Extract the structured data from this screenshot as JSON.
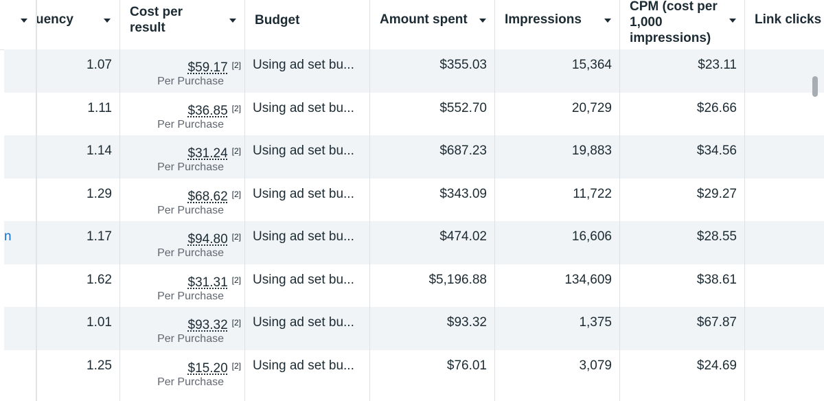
{
  "columns": {
    "frequency": "uency",
    "cost_per_result_line1": "Cost per",
    "cost_per_result_line2": "result",
    "budget": "Budget",
    "amount_spent": "Amount spent",
    "impressions": "Impressions",
    "cpm_line1": "CPM (cost per",
    "cpm_line2": "1,000",
    "cpm_line3": "impressions)",
    "link_clicks": "Link clicks"
  },
  "rows": [
    {
      "name_fragment": "",
      "frequency": "1.07",
      "cost": "$59.17",
      "footnote": "[2]",
      "result_type": "Per Purchase",
      "budget": "Using ad set bu...",
      "amount_spent": "$355.03",
      "impressions": "15,364",
      "cpm": "$23.11",
      "link_clicks": ""
    },
    {
      "name_fragment": "",
      "frequency": "1.11",
      "cost": "$36.85",
      "footnote": "[2]",
      "result_type": "Per Purchase",
      "budget": "Using ad set bu...",
      "amount_spent": "$552.70",
      "impressions": "20,729",
      "cpm": "$26.66",
      "link_clicks": ""
    },
    {
      "name_fragment": "",
      "frequency": "1.14",
      "cost": "$31.24",
      "footnote": "[2]",
      "result_type": "Per Purchase",
      "budget": "Using ad set bu...",
      "amount_spent": "$687.23",
      "impressions": "19,883",
      "cpm": "$34.56",
      "link_clicks": ""
    },
    {
      "name_fragment": "",
      "frequency": "1.29",
      "cost": "$68.62",
      "footnote": "[2]",
      "result_type": "Per Purchase",
      "budget": "Using ad set bu...",
      "amount_spent": "$343.09",
      "impressions": "11,722",
      "cpm": "$29.27",
      "link_clicks": ""
    },
    {
      "name_fragment": "n",
      "frequency": "1.17",
      "cost": "$94.80",
      "footnote": "[2]",
      "result_type": "Per Purchase",
      "budget": "Using ad set bu...",
      "amount_spent": "$474.02",
      "impressions": "16,606",
      "cpm": "$28.55",
      "link_clicks": ""
    },
    {
      "name_fragment": "",
      "frequency": "1.62",
      "cost": "$31.31",
      "footnote": "[2]",
      "result_type": "Per Purchase",
      "budget": "Using ad set bu...",
      "amount_spent": "$5,196.88",
      "impressions": "134,609",
      "cpm": "$38.61",
      "link_clicks": ""
    },
    {
      "name_fragment": "",
      "frequency": "1.01",
      "cost": "$93.32",
      "footnote": "[2]",
      "result_type": "Per Purchase",
      "budget": "Using ad set bu...",
      "amount_spent": "$93.32",
      "impressions": "1,375",
      "cpm": "$67.87",
      "link_clicks": ""
    },
    {
      "name_fragment": "",
      "frequency": "1.25",
      "cost": "$15.20",
      "footnote": "[2]",
      "result_type": "Per Purchase",
      "budget": "Using ad set bu...",
      "amount_spent": "$76.01",
      "impressions": "3,079",
      "cpm": "$24.69",
      "link_clicks": ""
    }
  ],
  "colors": {
    "row_alt_bg": "#f1f4f7",
    "text": "#1c2b33",
    "secondary_text": "#606770",
    "link": "#1a6ecc",
    "border": "#dde1e4"
  },
  "icons": {
    "sort": "caret-down-icon"
  }
}
